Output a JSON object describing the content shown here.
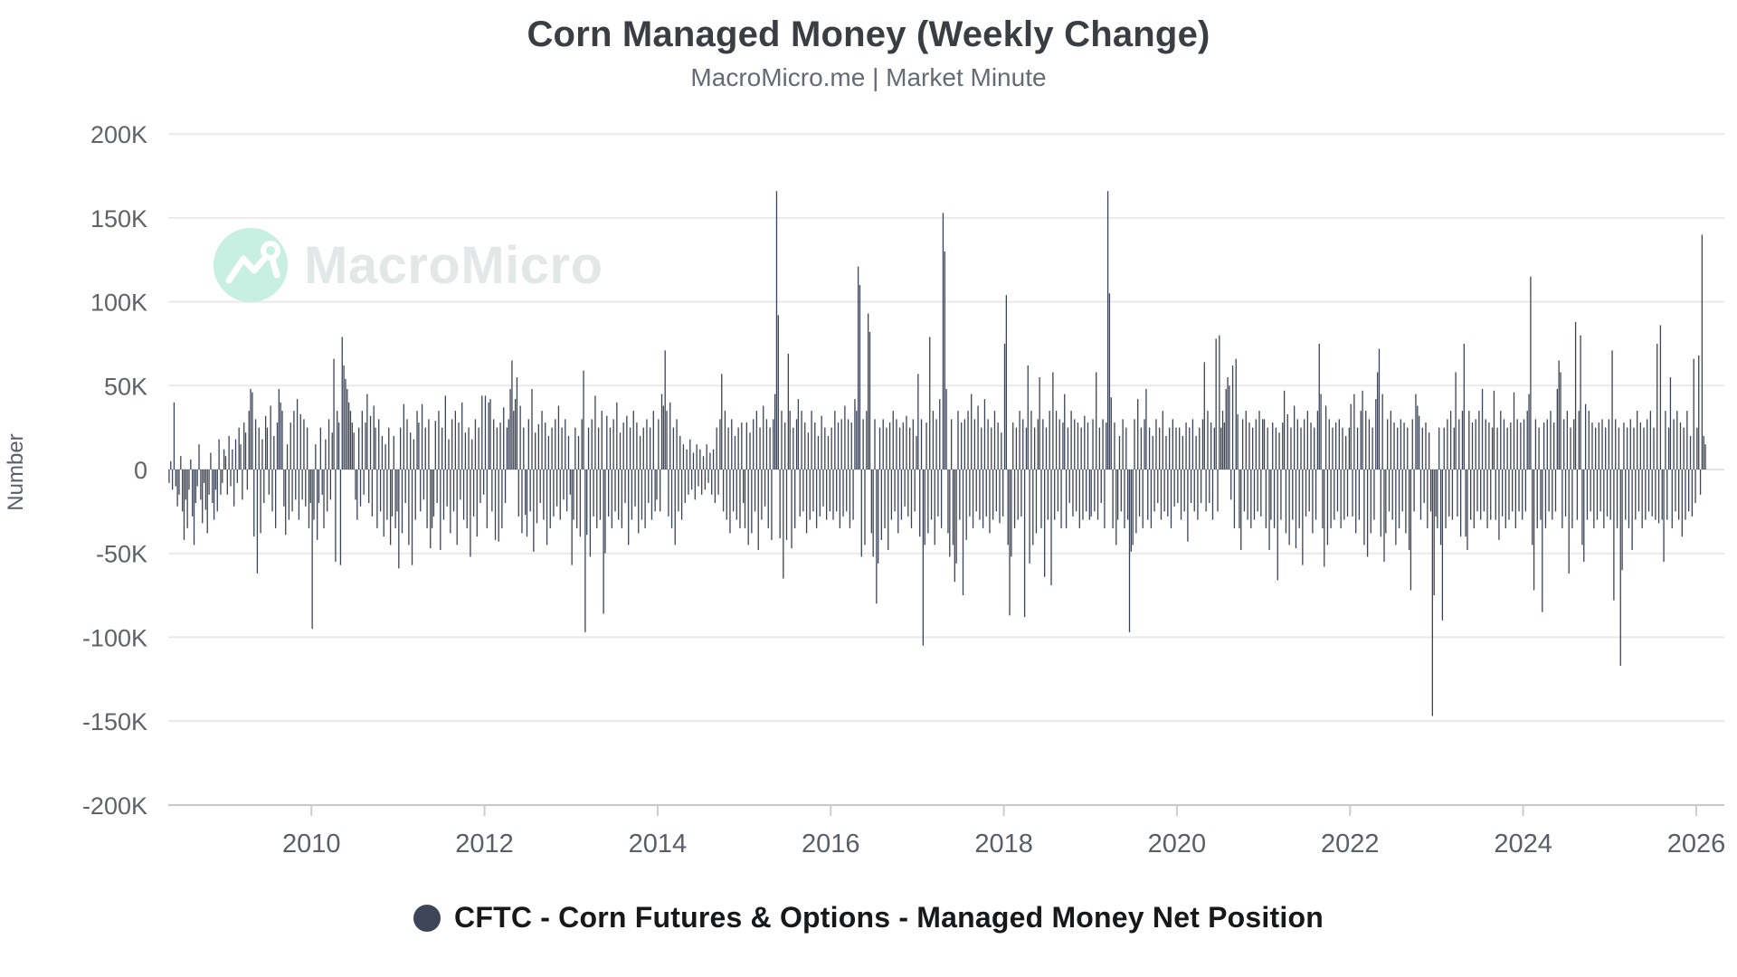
{
  "page": {
    "background": "#ffffff"
  },
  "header": {
    "title": "Corn Managed Money (Weekly Change)",
    "subtitle": "MacroMicro.me | Market Minute"
  },
  "watermark": {
    "text": "MacroMicro",
    "circle_color": "#c7f0e2"
  },
  "legend": {
    "label": "CFTC - Corn Futures & Options - Managed Money Net Position",
    "marker_color": "#3e4559"
  },
  "chart_data": {
    "type": "bar",
    "title": "Corn Managed Money (Weekly Change)",
    "subtitle": "MacroMicro.me | Market Minute",
    "ylabel": "Number",
    "series_name": "CFTC - Corn Futures & Options - Managed Money Net Position",
    "color": "#3c4357",
    "frequency": "weekly",
    "start": "2008-05",
    "end": "2026-02",
    "grid": true,
    "legend_position": "bottom",
    "x_tick_years": [
      2010,
      2012,
      2014,
      2016,
      2018,
      2020,
      2022,
      2024,
      2026
    ],
    "y_ticks_k": [
      200,
      150,
      100,
      50,
      0,
      -50,
      -100,
      -150,
      -200
    ],
    "ylim_k": [
      -200,
      200
    ],
    "values_unit": "thousand contracts",
    "values_k": [
      -8,
      5,
      -12,
      40,
      -10,
      -22,
      -15,
      8,
      -25,
      -42,
      -18,
      -35,
      -12,
      6,
      -28,
      -45,
      -20,
      -10,
      15,
      -18,
      -32,
      -8,
      -24,
      -38,
      -15,
      10,
      -20,
      -30,
      -12,
      -25,
      18,
      -15,
      -8,
      12,
      8,
      -15,
      20,
      -10,
      12,
      -22,
      18,
      -8,
      25,
      15,
      -18,
      28,
      22,
      -12,
      35,
      48,
      46,
      -40,
      30,
      -62,
      25,
      -38,
      18,
      -20,
      32,
      25,
      -15,
      38,
      -25,
      20,
      -35,
      28,
      48,
      40,
      35,
      -22,
      -39,
      15,
      -30,
      28,
      -25,
      35,
      -18,
      42,
      -30,
      33,
      -18,
      30,
      -22,
      25,
      -35,
      -20,
      -95,
      -30,
      15,
      -42,
      -20,
      25,
      -15,
      -35,
      18,
      -25,
      30,
      -18,
      22,
      66,
      -55,
      35,
      28,
      -57,
      79,
      62,
      54,
      48,
      40,
      35,
      28,
      22,
      -18,
      -30,
      25,
      -22,
      35,
      -15,
      28,
      45,
      -20,
      32,
      -28,
      38,
      25,
      -35,
      30,
      -25,
      20,
      -40,
      15,
      -30,
      25,
      -45,
      -28,
      20,
      -35,
      -25,
      -59,
      25,
      -38,
      39,
      -20,
      30,
      -45,
      22,
      -57,
      18,
      -30,
      35,
      28,
      -25,
      39,
      -18,
      25,
      -35,
      30,
      -47,
      -35,
      -28,
      29,
      -20,
      35,
      -48,
      25,
      -30,
      44,
      -22,
      18,
      -38,
      30,
      -25,
      35,
      -45,
      28,
      -18,
      40,
      -30,
      22,
      -35,
      25,
      -52,
      18,
      -28,
      30,
      -40,
      25,
      -20,
      44,
      -15,
      44,
      -35,
      40,
      42,
      -25,
      30,
      -42,
      25,
      -43,
      28,
      -35,
      37,
      -20,
      25,
      30,
      48,
      65,
      35,
      42,
      55,
      -28,
      38,
      -38,
      25,
      -27,
      -40,
      30,
      -25,
      48,
      -49,
      22,
      -32,
      27,
      -20,
      35,
      -30,
      28,
      -45,
      20,
      -35,
      25,
      -28,
      30,
      -22,
      38,
      -30,
      25,
      -18,
      30,
      -25,
      20,
      -15,
      -57,
      -30,
      25,
      -35,
      20,
      -40,
      30,
      59,
      -97,
      -39,
      25,
      -52,
      30,
      -28,
      44,
      -35,
      25,
      -30,
      35,
      -86,
      -50,
      32,
      -28,
      25,
      -35,
      30,
      -25,
      40,
      -30,
      22,
      -35,
      28,
      -20,
      32,
      -45,
      25,
      -30,
      35,
      -22,
      28,
      -38,
      20,
      -30,
      25,
      -35,
      30,
      -20,
      25,
      -30,
      35,
      -25,
      -18,
      30,
      -25,
      45,
      38,
      71,
      35,
      -28,
      40,
      -35,
      25,
      -45,
      30,
      -25,
      20,
      -30,
      15,
      -20,
      12,
      -15,
      18,
      -12,
      10,
      -18,
      15,
      -10,
      12,
      -15,
      8,
      -12,
      15,
      -8,
      10,
      -15,
      12,
      -20,
      25,
      -15,
      30,
      57,
      -25,
      35,
      -30,
      25,
      -38,
      30,
      -25,
      20,
      -30,
      25,
      -35,
      28,
      -20,
      -35,
      28,
      -45,
      22,
      -38,
      30,
      -25,
      35,
      -48,
      25,
      -30,
      38,
      -22,
      30,
      -35,
      25,
      -42,
      30,
      45,
      166,
      92,
      -41,
      35,
      -65,
      28,
      -42,
      69,
      35,
      -47,
      25,
      -35,
      30,
      42,
      -28,
      35,
      -25,
      28,
      -38,
      22,
      -30,
      35,
      -25,
      28,
      -35,
      20,
      -28,
      32,
      -22,
      25,
      -30,
      20,
      -25,
      25,
      -30,
      35,
      -25,
      28,
      -35,
      30,
      -28,
      38,
      -25,
      30,
      -35,
      28,
      -30,
      42,
      35,
      121,
      110,
      -52,
      30,
      -45,
      35,
      93,
      82,
      -38,
      -52,
      30,
      -80,
      -56,
      25,
      -42,
      30,
      -35,
      25,
      -48,
      28,
      -30,
      35,
      -25,
      30,
      -38,
      25,
      -30,
      28,
      -22,
      32,
      -28,
      25,
      -35,
      30,
      -25,
      20,
      57,
      -40,
      30,
      -105,
      -45,
      28,
      -38,
      79,
      -30,
      35,
      -45,
      30,
      -28,
      42,
      -35,
      153,
      130,
      48,
      -38,
      -52,
      30,
      -45,
      -67,
      -56,
      35,
      -30,
      28,
      -75,
      30,
      -42,
      35,
      -28,
      45,
      -35,
      30,
      -25,
      38,
      -30,
      25,
      -35,
      42,
      -28,
      30,
      -38,
      25,
      -30,
      35,
      -25,
      28,
      -32,
      22,
      -28,
      75,
      104,
      -45,
      -87,
      -52,
      28,
      -35,
      25,
      -30,
      35,
      -28,
      30,
      -88,
      25,
      62,
      -56,
      35,
      -45,
      25,
      -38,
      30,
      55,
      -35,
      30,
      -64,
      25,
      -30,
      35,
      -69,
      58,
      -30,
      35,
      -25,
      30,
      -35,
      28,
      45,
      -35,
      25,
      -20,
      35,
      -28,
      30,
      -25,
      28,
      -35,
      25,
      -30,
      32,
      -25,
      28,
      -30,
      -28,
      30,
      -25,
      58,
      -30,
      25,
      -20,
      30,
      -35,
      28,
      166,
      105,
      43,
      -35,
      28,
      -45,
      -30,
      20,
      -25,
      30,
      -35,
      25,
      -30,
      -97,
      -49,
      -45,
      30,
      -38,
      42,
      -28,
      25,
      -35,
      30,
      48,
      -30,
      25,
      -35,
      20,
      -25,
      30,
      -20,
      25,
      -30,
      35,
      -25,
      20,
      -28,
      25,
      -35,
      30,
      -22,
      25,
      -20,
      25,
      -30,
      20,
      -25,
      28,
      -43,
      25,
      -20,
      30,
      -25,
      20,
      -30,
      25,
      -20,
      30,
      64,
      -25,
      35,
      -20,
      28,
      -30,
      25,
      78,
      -25,
      80,
      25,
      35,
      28,
      48,
      55,
      50,
      -18,
      62,
      -35,
      66,
      33,
      -35,
      -48,
      30,
      -25,
      35,
      -30,
      28,
      -35,
      25,
      -30,
      30,
      -25,
      35,
      -28,
      30,
      30,
      -35,
      25,
      -48,
      -30,
      28,
      -35,
      25,
      -66,
      22,
      -30,
      28,
      47,
      -38,
      33,
      -45,
      25,
      -30,
      38,
      -47,
      30,
      -35,
      25,
      -57,
      30,
      -28,
      35,
      -25,
      28,
      -38,
      25,
      -30,
      35,
      75,
      45,
      -35,
      -58,
      38,
      -45,
      30,
      -35,
      25,
      -30,
      28,
      -25,
      30,
      -35,
      25,
      -30,
      20,
      -28,
      25,
      39,
      -28,
      45,
      -38,
      25,
      -30,
      35,
      47,
      -45,
      35,
      -52,
      30,
      -38,
      25,
      -30,
      42,
      58,
      72,
      -40,
      45,
      -55,
      -38,
      30,
      -25,
      35,
      -30,
      28,
      -45,
      25,
      -35,
      30,
      -25,
      28,
      -38,
      25,
      -48,
      -72,
      30,
      -25,
      45,
      38,
      32,
      -30,
      25,
      -20,
      28,
      -35,
      22,
      -25,
      -147,
      -75,
      -28,
      -35,
      25,
      -45,
      -90,
      25,
      -35,
      30,
      -28,
      35,
      -30,
      25,
      58,
      -28,
      30,
      -40,
      35,
      75,
      -40,
      -48,
      35,
      -30,
      28,
      -35,
      30,
      -25,
      35,
      -30,
      48,
      -25,
      30,
      -35,
      28,
      -30,
      25,
      47,
      -30,
      25,
      -42,
      35,
      -28,
      30,
      -35,
      25,
      -30,
      28,
      -25,
      46,
      -35,
      30,
      -25,
      28,
      -30,
      30,
      -25,
      35,
      45,
      115,
      -45,
      -72,
      30,
      -35,
      25,
      -30,
      -85,
      28,
      -35,
      30,
      -25,
      35,
      -30,
      28,
      -25,
      48,
      65,
      58,
      -35,
      30,
      -28,
      35,
      -62,
      25,
      -35,
      30,
      88,
      -30,
      35,
      80,
      -45,
      -55,
      39,
      -30,
      35,
      -25,
      28,
      -35,
      25,
      -30,
      28,
      -25,
      30,
      -35,
      25,
      -28,
      30,
      -30,
      71,
      -78,
      30,
      -35,
      25,
      -117,
      -60,
      28,
      -30,
      25,
      -35,
      30,
      -48,
      25,
      -30,
      35,
      -25,
      28,
      -35,
      25,
      -30,
      30,
      -25,
      35,
      -28,
      25,
      -30,
      75,
      -32,
      86,
      -30,
      -55,
      35,
      -30,
      25,
      55,
      -35,
      30,
      -25,
      35,
      -30,
      28,
      -40,
      25,
      -30,
      35,
      -25,
      20,
      -28,
      66,
      -20,
      25,
      68,
      -15,
      140,
      20,
      15
    ]
  }
}
